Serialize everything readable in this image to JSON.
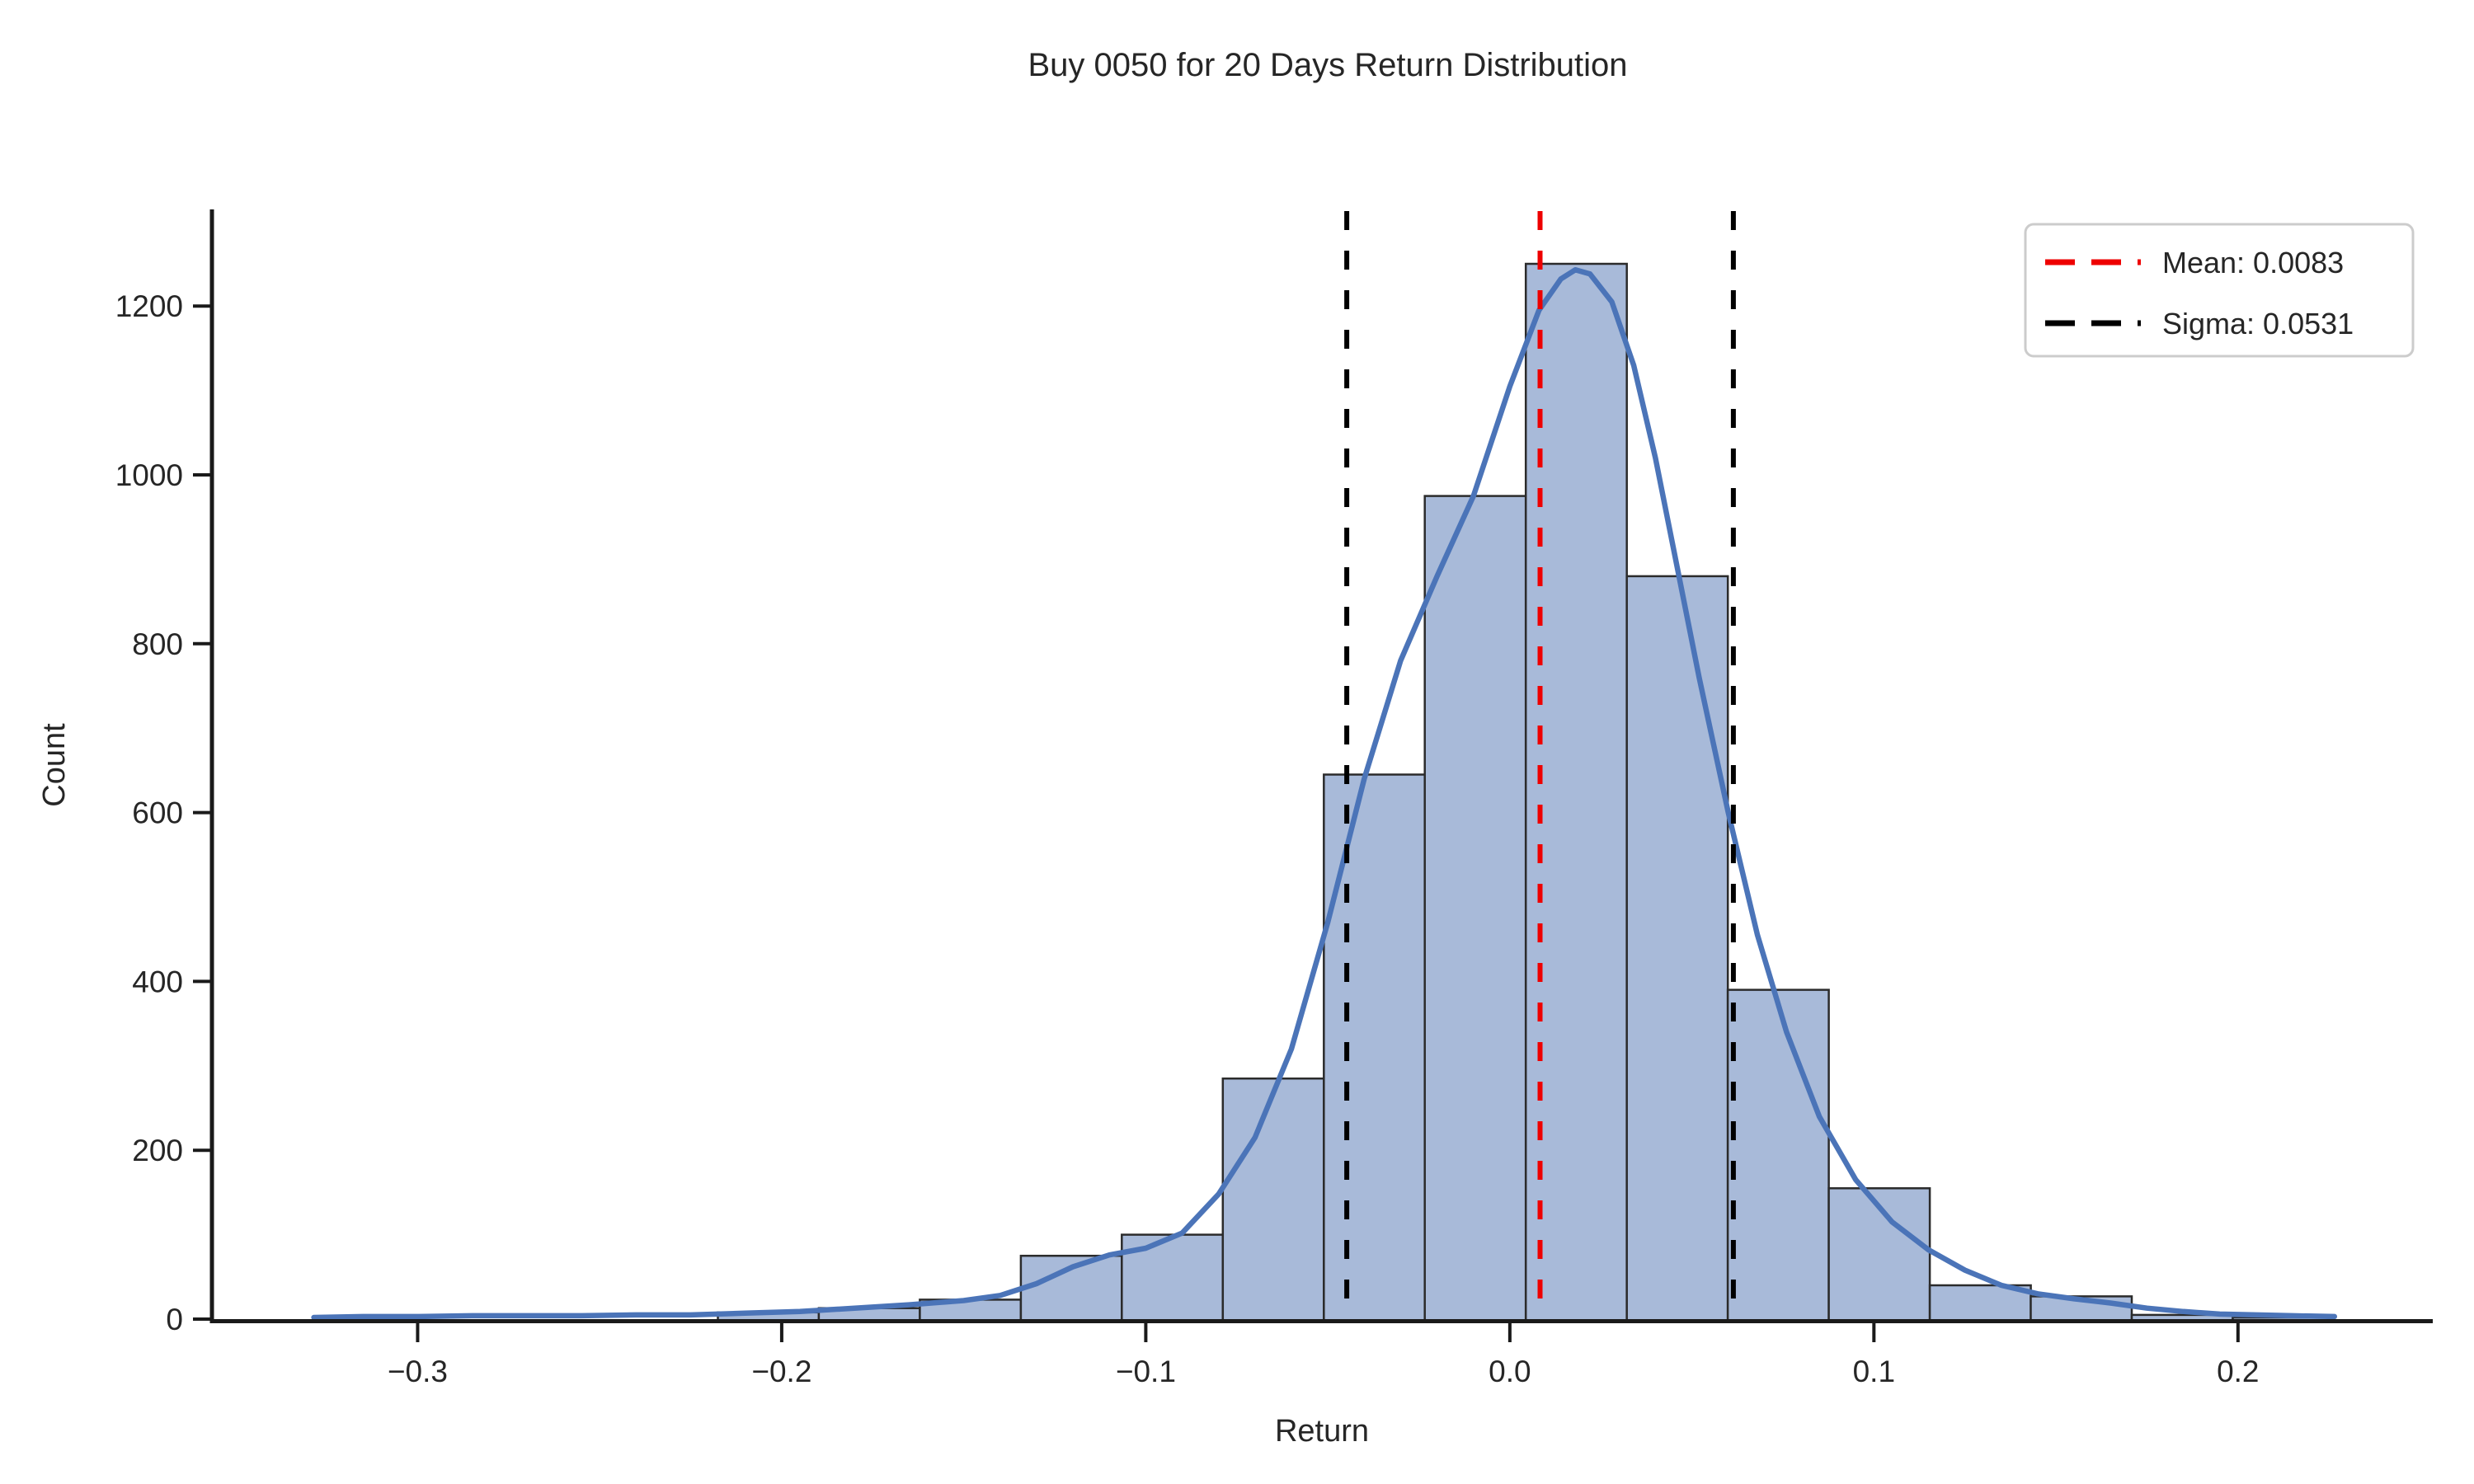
{
  "chart_data": {
    "type": "histogram",
    "title": "Buy 0050 for 20 Days Return Distribution",
    "xlabel": "Return",
    "ylabel": "Count",
    "xlim": [
      -0.3565,
      0.2535
    ],
    "ylim": [
      0,
      1312.5
    ],
    "grid": false,
    "x_ticks": [
      {
        "v": -0.3,
        "label": "−0.3"
      },
      {
        "v": -0.2,
        "label": "−0.2"
      },
      {
        "v": -0.1,
        "label": "−0.1"
      },
      {
        "v": 0.0,
        "label": "0.0"
      },
      {
        "v": 0.1,
        "label": "0.1"
      },
      {
        "v": 0.2,
        "label": "0.2"
      }
    ],
    "y_ticks": [
      {
        "v": 0,
        "label": "0"
      },
      {
        "v": 200,
        "label": "200"
      },
      {
        "v": 400,
        "label": "400"
      },
      {
        "v": 600,
        "label": "600"
      },
      {
        "v": 800,
        "label": "800"
      },
      {
        "v": 1000,
        "label": "1000"
      },
      {
        "v": 1200,
        "label": "1200"
      }
    ],
    "bins": {
      "start": -0.3285,
      "width": 0.02774,
      "counts": [
        2,
        0,
        0,
        0,
        8,
        13,
        23,
        75,
        100,
        285,
        645,
        975,
        1250,
        880,
        390,
        155,
        40,
        27,
        5,
        2
      ]
    },
    "kde": [
      [
        -0.3285,
        2
      ],
      [
        -0.315,
        3
      ],
      [
        -0.3,
        3
      ],
      [
        -0.285,
        4
      ],
      [
        -0.27,
        4
      ],
      [
        -0.255,
        4
      ],
      [
        -0.24,
        5
      ],
      [
        -0.225,
        5
      ],
      [
        -0.21,
        7
      ],
      [
        -0.195,
        9
      ],
      [
        -0.18,
        13
      ],
      [
        -0.165,
        17
      ],
      [
        -0.15,
        22
      ],
      [
        -0.14,
        28
      ],
      [
        -0.13,
        42
      ],
      [
        -0.12,
        62
      ],
      [
        -0.11,
        76
      ],
      [
        -0.1,
        84
      ],
      [
        -0.09,
        102
      ],
      [
        -0.08,
        148
      ],
      [
        -0.07,
        215
      ],
      [
        -0.06,
        320
      ],
      [
        -0.05,
        470
      ],
      [
        -0.04,
        640
      ],
      [
        -0.03,
        780
      ],
      [
        -0.02,
        880
      ],
      [
        -0.01,
        975
      ],
      [
        0.0,
        1105
      ],
      [
        0.008,
        1195
      ],
      [
        0.014,
        1232
      ],
      [
        0.018,
        1243
      ],
      [
        0.022,
        1238
      ],
      [
        0.028,
        1205
      ],
      [
        0.034,
        1130
      ],
      [
        0.04,
        1020
      ],
      [
        0.046,
        890
      ],
      [
        0.052,
        760
      ],
      [
        0.06,
        600
      ],
      [
        0.068,
        455
      ],
      [
        0.076,
        340
      ],
      [
        0.085,
        240
      ],
      [
        0.095,
        165
      ],
      [
        0.105,
        115
      ],
      [
        0.115,
        82
      ],
      [
        0.125,
        58
      ],
      [
        0.135,
        40
      ],
      [
        0.145,
        30
      ],
      [
        0.155,
        24
      ],
      [
        0.165,
        19
      ],
      [
        0.175,
        13
      ],
      [
        0.185,
        9
      ],
      [
        0.195,
        6
      ],
      [
        0.205,
        5
      ],
      [
        0.215,
        4
      ],
      [
        0.2265,
        3
      ]
    ],
    "mean": 0.0083,
    "sigma": 0.0531,
    "ref_lines": [
      {
        "name": "mean-line",
        "x": 0.0083,
        "color": "#ee0000"
      },
      {
        "name": "sigma-line-lower",
        "x": -0.0448,
        "color": "#000000"
      },
      {
        "name": "sigma-line-upper",
        "x": 0.0614,
        "color": "#000000"
      }
    ],
    "legend": {
      "position": "upper right",
      "entries": [
        {
          "label": "Mean: 0.0083",
          "color": "#ee0000"
        },
        {
          "label": "Sigma: 0.0531",
          "color": "#000000"
        }
      ]
    },
    "colors": {
      "bar_fill": "#a8bad9",
      "bar_edge": "#2b2b2b",
      "kde_line": "#4b74b8",
      "spine": "#1a1a1a",
      "text": "#262626",
      "legend_border": "#cccccc",
      "background": "#ffffff"
    }
  }
}
